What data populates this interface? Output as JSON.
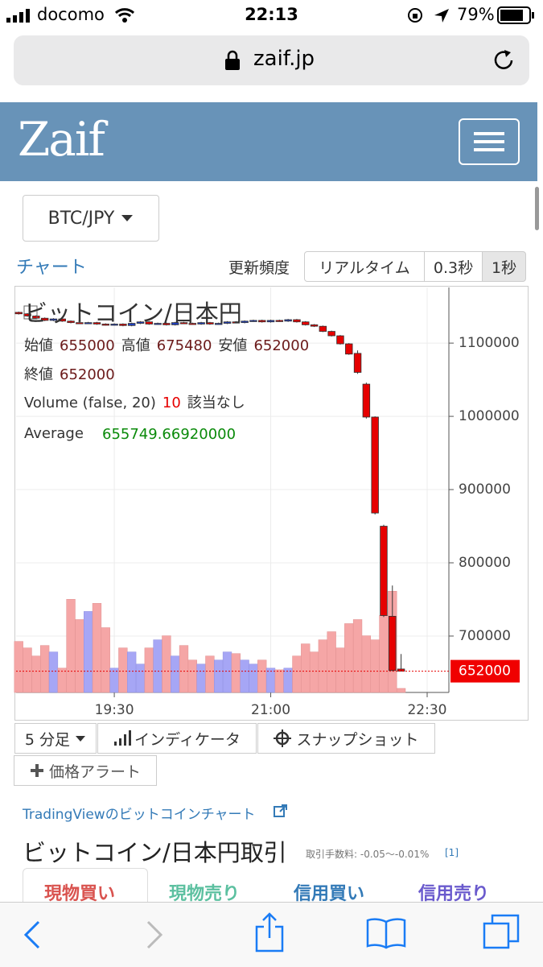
{
  "status_bar": {
    "carrier": "docomo",
    "time": "22:13",
    "battery": "79%"
  },
  "browser": {
    "url": "zaif.jp"
  },
  "header": {
    "logo": "Zaif"
  },
  "market": {
    "pair": "BTC/JPY",
    "section": "チャート",
    "refresh_label": "更新頻度",
    "refresh_options": [
      "リアルタイム",
      "0.3秒",
      "1秒"
    ]
  },
  "chart": {
    "type": "candlestick",
    "title": "ビットコイン/日本円",
    "info": {
      "open_label": "始値",
      "open": 655000,
      "high_label": "高値",
      "high": 675480,
      "low_label": "安値",
      "low": 652000,
      "close_label": "終値",
      "close": 652000,
      "volume_label": "Volume (false, 20)",
      "volume": 10,
      "volume_note": "該当なし",
      "average_label": "Average",
      "average": "655749.66920000"
    },
    "xlim": [
      -0.3,
      49.5
    ],
    "xticks": [
      {
        "value": 11,
        "label": "19:30"
      },
      {
        "value": 29,
        "label": "21:00"
      },
      {
        "value": 47,
        "label": "22:30"
      }
    ],
    "ylim": [
      623000,
      1176000
    ],
    "yticks": [
      700000,
      800000,
      900000,
      1000000,
      1100000
    ],
    "volume_ylim": [
      0,
      1000
    ],
    "last_price": 652000,
    "grid": true,
    "up_color": "#1f3fbf",
    "down_color": "#e60000",
    "volume_up_color": "#a6a6f5",
    "volume_down_color": "#f5a6a6",
    "open": [
      1142000,
      1140000,
      1137000,
      1134000,
      1131000,
      1133000,
      1130000,
      1128000,
      1127000,
      1128000,
      1126000,
      1125000,
      1126000,
      1124000,
      1127000,
      1129000,
      1126000,
      1127000,
      1125000,
      1128000,
      1127000,
      1126000,
      1128000,
      1126000,
      1127000,
      1129000,
      1128000,
      1130000,
      1131000,
      1129000,
      1131000,
      1130000,
      1132000,
      1129000,
      1125000,
      1123000,
      1116000,
      1110000,
      1099000,
      1086000,
      1044000,
      999000,
      850000,
      727000,
      655000
    ],
    "high": [
      1143000,
      1141000,
      1138000,
      1135000,
      1134000,
      1134000,
      1131000,
      1129000,
      1129000,
      1129000,
      1127000,
      1127000,
      1127000,
      1128000,
      1130000,
      1130000,
      1128000,
      1128000,
      1129000,
      1129000,
      1128000,
      1129000,
      1129000,
      1128000,
      1130000,
      1130000,
      1131000,
      1132000,
      1132000,
      1132000,
      1132000,
      1133000,
      1133000,
      1130000,
      1126000,
      1124000,
      1117000,
      1111000,
      1100000,
      1090000,
      1046000,
      1000000,
      852000,
      769000,
      675480
    ],
    "low": [
      1139000,
      1136000,
      1133000,
      1130000,
      1130000,
      1129000,
      1127000,
      1126000,
      1126000,
      1125000,
      1124000,
      1124000,
      1123000,
      1123000,
      1126000,
      1125000,
      1125000,
      1124000,
      1124000,
      1126000,
      1125000,
      1125000,
      1125000,
      1125000,
      1126000,
      1127000,
      1127000,
      1129000,
      1128000,
      1128000,
      1129000,
      1129000,
      1128000,
      1124000,
      1122000,
      1115000,
      1109000,
      1098000,
      1084000,
      1058000,
      997000,
      866000,
      726000,
      652000,
      652000
    ],
    "close": [
      1140000,
      1137000,
      1134000,
      1131000,
      1133000,
      1130000,
      1128000,
      1127000,
      1128000,
      1126000,
      1125000,
      1126000,
      1124000,
      1127000,
      1129000,
      1126000,
      1127000,
      1125000,
      1128000,
      1127000,
      1126000,
      1128000,
      1126000,
      1127000,
      1129000,
      1128000,
      1130000,
      1131000,
      1129000,
      1131000,
      1130000,
      1132000,
      1129000,
      1125000,
      1123000,
      1116000,
      1110000,
      1099000,
      1085000,
      1060000,
      999000,
      868000,
      728000,
      653000,
      652000
    ],
    "volume": [
      126,
      110,
      90,
      116,
      100,
      60,
      230,
      180,
      200,
      220,
      160,
      60,
      110,
      100,
      70,
      110,
      130,
      140,
      90,
      116,
      80,
      70,
      90,
      80,
      100,
      96,
      80,
      70,
      80,
      60,
      56,
      60,
      90,
      120,
      100,
      130,
      150,
      110,
      170,
      180,
      140,
      130,
      190,
      250,
      10
    ]
  },
  "toolbar": {
    "interval": "5 分足",
    "indicator": "インディケータ",
    "snapshot": "スナップショット",
    "alert": "価格アラート"
  },
  "link": {
    "text": "TradingViewのビットコインチャート"
  },
  "trade": {
    "title": "ビットコイン/日本円取引",
    "fee": "取引手数料: -0.05〜-0.01%",
    "fee_ref": "[1]",
    "tabs": [
      "現物買い",
      "現物売り",
      "信用買い",
      "信用売り"
    ]
  }
}
